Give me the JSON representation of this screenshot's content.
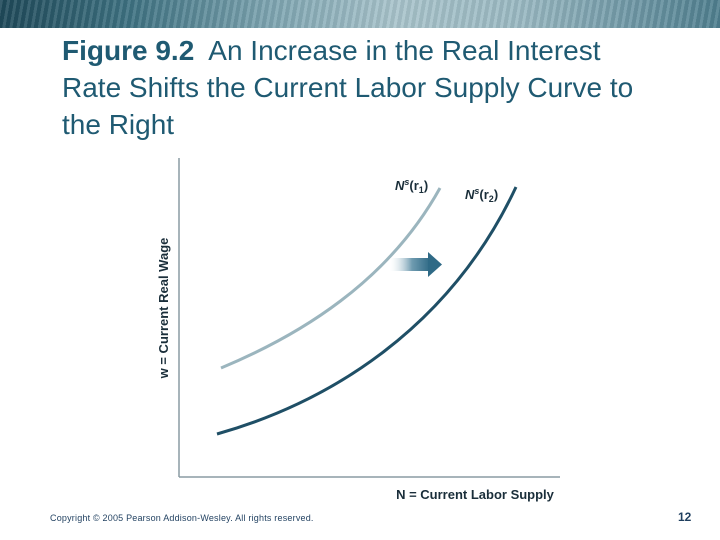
{
  "header": {
    "figure_number": "Figure 9.2",
    "title_text": "An Increase in the Real Interest Rate Shifts the Current Labor Supply Curve to the Right"
  },
  "chart_data": {
    "type": "line",
    "xlabel": "N = Current Labor Supply",
    "ylabel": "w = Current Real Wage",
    "grid": false,
    "series": [
      {
        "name": "NS(r1)",
        "label_main": "N",
        "label_sup": "s",
        "label_arg": "(r",
        "label_sub": "1",
        "label_close": ")",
        "color": "#9bb5be"
      },
      {
        "name": "NS(r2)",
        "label_main": "N",
        "label_sup": "s",
        "label_arg": "(r",
        "label_sub": "2",
        "label_close": ")",
        "color": "#1f4f66"
      }
    ],
    "shift_arrow": {
      "direction": "right",
      "color": "#3b6f8a"
    }
  },
  "footer": {
    "copyright": "Copyright © 2005 Pearson Addison-Wesley. All rights reserved.",
    "page_number": "12"
  }
}
